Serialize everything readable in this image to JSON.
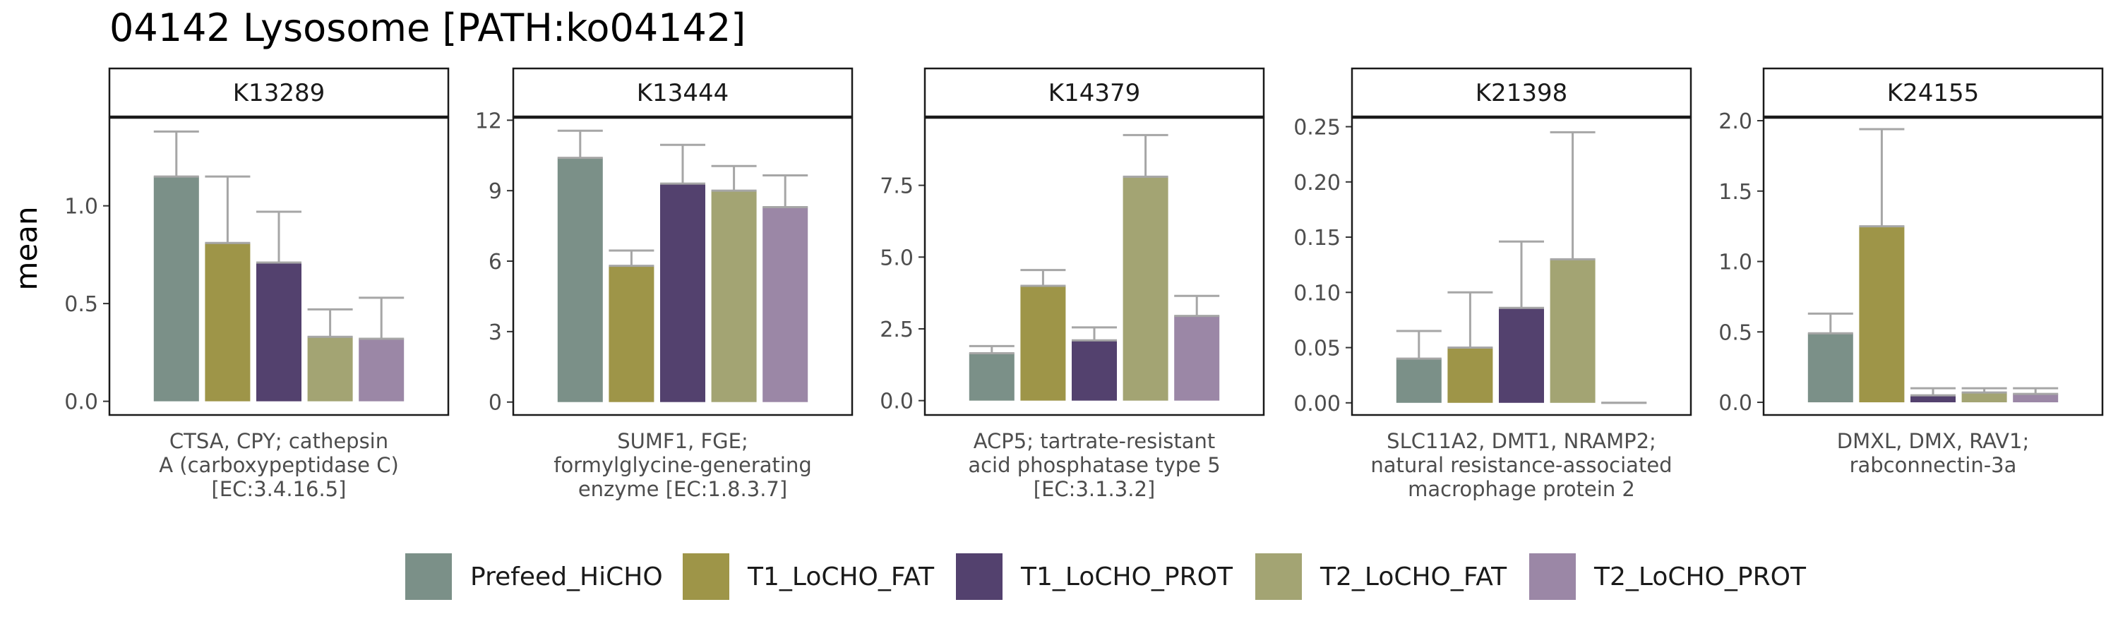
{
  "title": "04142 Lysosome [PATH:ko04142]",
  "ylabel": "mean",
  "legend": [
    {
      "name": "Prefeed_HiCHO",
      "color": "#7B9088"
    },
    {
      "name": "T1_LoCHO_FAT",
      "color": "#9E9548"
    },
    {
      "name": "T1_LoCHO_PROT",
      "color": "#53416E"
    },
    {
      "name": "T2_LoCHO_FAT",
      "color": "#A3A473"
    },
    {
      "name": "T2_LoCHO_PROT",
      "color": "#9B87A6"
    }
  ],
  "chart_data": [
    {
      "type": "bar",
      "panel": "K13289",
      "description": [
        "CTSA, CPY; cathepsin",
        "A (carboxypeptidase C)",
        "[EC:3.4.16.5]"
      ],
      "categories": [
        "Prefeed_HiCHO",
        "T1_LoCHO_FAT",
        "T1_LoCHO_PROT",
        "T2_LoCHO_FAT",
        "T2_LoCHO_PROT"
      ],
      "values": [
        1.15,
        0.81,
        0.71,
        0.33,
        0.32
      ],
      "error_upper": [
        1.38,
        1.15,
        0.97,
        0.47,
        0.53
      ],
      "ylim": [
        -0.07,
        1.45
      ],
      "yticks": [
        0.0,
        0.5,
        1.0
      ],
      "yticklabels": [
        "0.0",
        "0.5",
        "1.0"
      ]
    },
    {
      "type": "bar",
      "panel": "K13444",
      "description": [
        "SUMF1, FGE;",
        "formylglycine-generating",
        "enzyme [EC:1.8.3.7]"
      ],
      "categories": [
        "Prefeed_HiCHO",
        "T1_LoCHO_FAT",
        "T1_LoCHO_PROT",
        "T2_LoCHO_FAT",
        "T2_LoCHO_PROT"
      ],
      "values": [
        10.4,
        5.8,
        9.3,
        9.0,
        8.3
      ],
      "error_upper": [
        11.55,
        6.45,
        10.95,
        10.05,
        9.65
      ],
      "ylim": [
        -0.55,
        12.1
      ],
      "yticks": [
        0,
        3,
        6,
        9,
        12
      ],
      "yticklabels": [
        "0",
        "3",
        "6",
        "9",
        "12"
      ]
    },
    {
      "type": "bar",
      "panel": "K14379",
      "description": [
        "ACP5; tartrate-resistant",
        "acid phosphatase type 5",
        "[EC:3.1.3.2]"
      ],
      "categories": [
        "Prefeed_HiCHO",
        "T1_LoCHO_FAT",
        "T1_LoCHO_PROT",
        "T2_LoCHO_FAT",
        "T2_LoCHO_PROT"
      ],
      "values": [
        1.65,
        4.0,
        2.1,
        7.8,
        2.95
      ],
      "error_upper": [
        1.9,
        4.55,
        2.55,
        9.25,
        3.65
      ],
      "ylim": [
        -0.5,
        9.85
      ],
      "yticks": [
        0.0,
        2.5,
        5.0,
        7.5
      ],
      "yticklabels": [
        "0.0",
        "2.5",
        "5.0",
        "7.5"
      ]
    },
    {
      "type": "bar",
      "panel": "K21398",
      "description": [
        "SLC11A2, DMT1, NRAMP2;",
        "natural resistance-associated",
        "macrophage protein 2"
      ],
      "categories": [
        "Prefeed_HiCHO",
        "T1_LoCHO_FAT",
        "T1_LoCHO_PROT",
        "T2_LoCHO_FAT",
        "T2_LoCHO_PROT"
      ],
      "values": [
        0.04,
        0.05,
        0.086,
        0.13,
        0.0
      ],
      "error_upper": [
        0.065,
        0.1,
        0.146,
        0.245,
        0.0
      ],
      "ylim": [
        -0.011,
        0.258
      ],
      "yticks": [
        0.0,
        0.05,
        0.1,
        0.15,
        0.2,
        0.25
      ],
      "yticklabels": [
        "0.00",
        "0.05",
        "0.10",
        "0.15",
        "0.20",
        "0.25"
      ]
    },
    {
      "type": "bar",
      "panel": "K24155",
      "description": [
        "DMXL, DMX, RAV1;",
        "rabconnectin-3a"
      ],
      "categories": [
        "Prefeed_HiCHO",
        "T1_LoCHO_FAT",
        "T1_LoCHO_PROT",
        "T2_LoCHO_FAT",
        "T2_LoCHO_PROT"
      ],
      "values": [
        0.49,
        1.25,
        0.05,
        0.07,
        0.06
      ],
      "error_upper": [
        0.63,
        1.94,
        0.1,
        0.1,
        0.1
      ],
      "ylim": [
        -0.09,
        2.02
      ],
      "yticks": [
        0.0,
        0.5,
        1.0,
        1.5,
        2.0
      ],
      "yticklabels": [
        "0.0",
        "0.5",
        "1.0",
        "1.5",
        "2.0"
      ]
    }
  ]
}
